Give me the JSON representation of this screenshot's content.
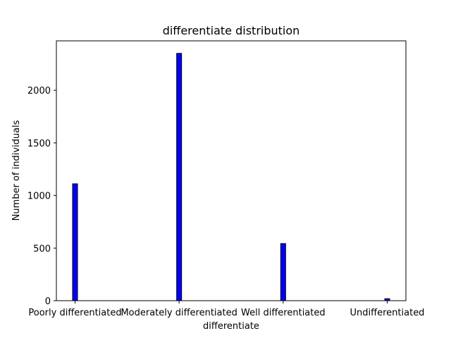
{
  "chart_data": {
    "type": "bar",
    "title": "differentiate distribution",
    "xlabel": "differentiate",
    "ylabel": "Number of individuals",
    "categories": [
      "Poorly differentiated",
      "Moderately differentiated",
      "Well differentiated",
      "Undifferentiated"
    ],
    "values": [
      1111,
      2351,
      543,
      19
    ],
    "ylim": [
      0,
      2470
    ],
    "yticks": [
      0,
      500,
      1000,
      1500,
      2000
    ],
    "grid": false,
    "colors": {
      "bar_fill": "#0000ff",
      "bar_edge": "#000000"
    }
  }
}
